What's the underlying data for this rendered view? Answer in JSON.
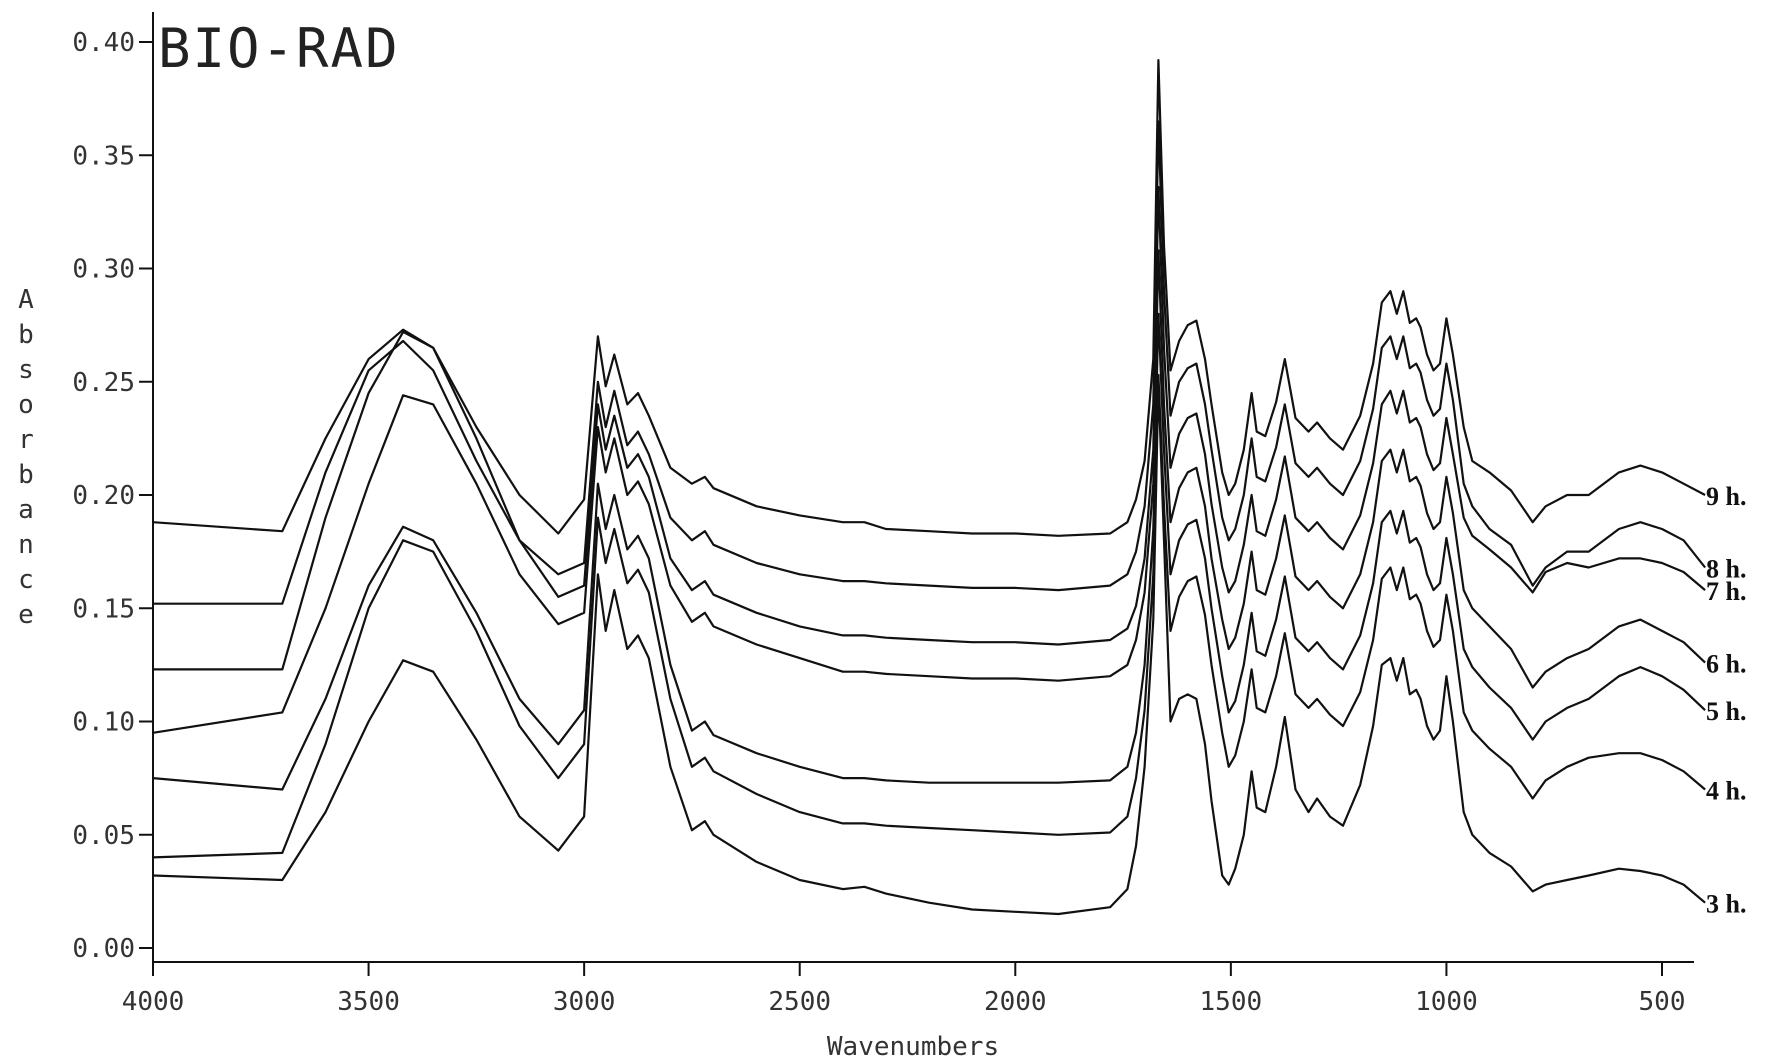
{
  "chart_data": {
    "type": "line",
    "title": "BIO-RAD",
    "xlabel": "Wavenumbers",
    "ylabel": "Absorbance",
    "xlim": [
      4000,
      400
    ],
    "ylim": [
      0,
      0.4
    ],
    "x_reversed": true,
    "grid": false,
    "xticks": [
      4000,
      3500,
      3000,
      2500,
      2000,
      1500,
      1000,
      500
    ],
    "xtick_labels": [
      "4000",
      "3500",
      "3000",
      "2500",
      "2000",
      "1500",
      "1000",
      "500"
    ],
    "yticks": [
      0.0,
      0.05,
      0.1,
      0.15,
      0.2,
      0.25,
      0.3,
      0.35,
      0.4
    ],
    "ytick_labels": [
      "0.00",
      "0.05",
      "0.10",
      "0.15",
      "0.20",
      "0.25",
      "0.30",
      "0.35",
      "0.40"
    ],
    "x": [
      4000,
      3700,
      3600,
      3500,
      3420,
      3350,
      3250,
      3150,
      3060,
      3000,
      2968,
      2950,
      2930,
      2900,
      2875,
      2850,
      2800,
      2750,
      2720,
      2700,
      2600,
      2500,
      2400,
      2350,
      2300,
      2200,
      2100,
      2000,
      1900,
      1780,
      1740,
      1720,
      1700,
      1680,
      1668,
      1655,
      1640,
      1620,
      1600,
      1580,
      1560,
      1545,
      1520,
      1505,
      1490,
      1470,
      1452,
      1440,
      1420,
      1395,
      1375,
      1350,
      1320,
      1300,
      1270,
      1240,
      1200,
      1170,
      1150,
      1130,
      1115,
      1100,
      1085,
      1070,
      1060,
      1045,
      1030,
      1015,
      1000,
      985,
      960,
      940,
      900,
      850,
      800,
      770,
      720,
      670,
      600,
      550,
      500,
      450,
      400
    ],
    "series": [
      {
        "name": "9 h.",
        "values": [
          0.188,
          0.184,
          0.225,
          0.26,
          0.273,
          0.265,
          0.23,
          0.2,
          0.183,
          0.198,
          0.27,
          0.248,
          0.262,
          0.24,
          0.245,
          0.235,
          0.212,
          0.205,
          0.208,
          0.203,
          0.195,
          0.191,
          0.188,
          0.188,
          0.185,
          0.184,
          0.183,
          0.183,
          0.182,
          0.183,
          0.188,
          0.198,
          0.215,
          0.26,
          0.392,
          0.31,
          0.255,
          0.268,
          0.275,
          0.277,
          0.26,
          0.24,
          0.21,
          0.2,
          0.205,
          0.22,
          0.245,
          0.228,
          0.226,
          0.241,
          0.26,
          0.234,
          0.228,
          0.232,
          0.225,
          0.22,
          0.235,
          0.258,
          0.285,
          0.29,
          0.28,
          0.29,
          0.276,
          0.278,
          0.274,
          0.262,
          0.255,
          0.258,
          0.278,
          0.262,
          0.23,
          0.215,
          0.21,
          0.202,
          0.188,
          0.195,
          0.2,
          0.2,
          0.21,
          0.213,
          0.21,
          0.205,
          0.2
        ]
      },
      {
        "name": "8 h.",
        "values": [
          0.152,
          0.152,
          0.21,
          0.255,
          0.268,
          0.255,
          0.215,
          0.18,
          0.165,
          0.17,
          0.25,
          0.23,
          0.246,
          0.222,
          0.228,
          0.218,
          0.19,
          0.18,
          0.184,
          0.178,
          0.17,
          0.165,
          0.162,
          0.162,
          0.161,
          0.16,
          0.159,
          0.159,
          0.158,
          0.16,
          0.165,
          0.175,
          0.195,
          0.24,
          0.365,
          0.29,
          0.235,
          0.25,
          0.256,
          0.258,
          0.24,
          0.22,
          0.19,
          0.18,
          0.185,
          0.2,
          0.225,
          0.208,
          0.206,
          0.221,
          0.24,
          0.214,
          0.208,
          0.212,
          0.205,
          0.2,
          0.215,
          0.238,
          0.265,
          0.27,
          0.26,
          0.27,
          0.256,
          0.258,
          0.254,
          0.242,
          0.235,
          0.238,
          0.258,
          0.242,
          0.205,
          0.195,
          0.185,
          0.178,
          0.16,
          0.168,
          0.175,
          0.175,
          0.185,
          0.188,
          0.185,
          0.18,
          0.168
        ]
      },
      {
        "name": "7 h.",
        "values": [
          0.123,
          0.123,
          0.19,
          0.245,
          0.272,
          0.265,
          0.225,
          0.18,
          0.155,
          0.16,
          0.24,
          0.22,
          0.235,
          0.212,
          0.218,
          0.208,
          0.172,
          0.158,
          0.162,
          0.156,
          0.148,
          0.142,
          0.138,
          0.138,
          0.137,
          0.136,
          0.135,
          0.135,
          0.134,
          0.136,
          0.141,
          0.151,
          0.172,
          0.22,
          0.336,
          0.265,
          0.212,
          0.227,
          0.234,
          0.236,
          0.218,
          0.196,
          0.168,
          0.157,
          0.162,
          0.178,
          0.2,
          0.184,
          0.182,
          0.198,
          0.217,
          0.19,
          0.184,
          0.188,
          0.181,
          0.176,
          0.191,
          0.214,
          0.24,
          0.246,
          0.236,
          0.246,
          0.232,
          0.234,
          0.23,
          0.218,
          0.211,
          0.214,
          0.234,
          0.218,
          0.19,
          0.182,
          0.176,
          0.168,
          0.157,
          0.166,
          0.17,
          0.168,
          0.172,
          0.172,
          0.17,
          0.166,
          0.158
        ]
      },
      {
        "name": "6 h.",
        "values": [
          0.095,
          0.104,
          0.15,
          0.205,
          0.244,
          0.24,
          0.205,
          0.165,
          0.143,
          0.148,
          0.23,
          0.21,
          0.225,
          0.2,
          0.206,
          0.196,
          0.16,
          0.144,
          0.148,
          0.142,
          0.134,
          0.128,
          0.122,
          0.122,
          0.121,
          0.12,
          0.119,
          0.119,
          0.118,
          0.12,
          0.125,
          0.136,
          0.157,
          0.205,
          0.308,
          0.24,
          0.188,
          0.203,
          0.21,
          0.212,
          0.195,
          0.172,
          0.145,
          0.132,
          0.137,
          0.152,
          0.175,
          0.158,
          0.156,
          0.172,
          0.191,
          0.164,
          0.158,
          0.162,
          0.155,
          0.15,
          0.165,
          0.188,
          0.215,
          0.22,
          0.21,
          0.22,
          0.206,
          0.208,
          0.204,
          0.192,
          0.185,
          0.188,
          0.208,
          0.192,
          0.158,
          0.15,
          0.142,
          0.132,
          0.115,
          0.122,
          0.128,
          0.132,
          0.142,
          0.145,
          0.14,
          0.135,
          0.126
        ]
      },
      {
        "name": "5 h.",
        "values": [
          0.075,
          0.07,
          0.11,
          0.16,
          0.186,
          0.18,
          0.148,
          0.11,
          0.09,
          0.105,
          0.205,
          0.185,
          0.2,
          0.176,
          0.182,
          0.172,
          0.125,
          0.096,
          0.1,
          0.094,
          0.086,
          0.08,
          0.075,
          0.075,
          0.074,
          0.073,
          0.073,
          0.073,
          0.073,
          0.074,
          0.08,
          0.095,
          0.125,
          0.185,
          0.28,
          0.22,
          0.165,
          0.18,
          0.187,
          0.189,
          0.172,
          0.15,
          0.12,
          0.104,
          0.109,
          0.125,
          0.148,
          0.131,
          0.129,
          0.145,
          0.164,
          0.137,
          0.131,
          0.135,
          0.128,
          0.123,
          0.138,
          0.161,
          0.188,
          0.193,
          0.183,
          0.193,
          0.179,
          0.181,
          0.177,
          0.165,
          0.158,
          0.161,
          0.181,
          0.165,
          0.132,
          0.124,
          0.115,
          0.106,
          0.092,
          0.1,
          0.106,
          0.11,
          0.12,
          0.124,
          0.12,
          0.114,
          0.105
        ]
      },
      {
        "name": "4 h.",
        "values": [
          0.04,
          0.042,
          0.09,
          0.15,
          0.18,
          0.175,
          0.14,
          0.098,
          0.075,
          0.09,
          0.19,
          0.17,
          0.185,
          0.161,
          0.167,
          0.157,
          0.11,
          0.08,
          0.084,
          0.078,
          0.068,
          0.06,
          0.055,
          0.055,
          0.054,
          0.053,
          0.052,
          0.051,
          0.05,
          0.051,
          0.058,
          0.075,
          0.105,
          0.165,
          0.253,
          0.195,
          0.14,
          0.155,
          0.162,
          0.164,
          0.147,
          0.125,
          0.095,
          0.08,
          0.085,
          0.1,
          0.123,
          0.106,
          0.104,
          0.12,
          0.139,
          0.112,
          0.106,
          0.11,
          0.103,
          0.098,
          0.113,
          0.136,
          0.163,
          0.168,
          0.158,
          0.168,
          0.154,
          0.156,
          0.152,
          0.14,
          0.133,
          0.136,
          0.156,
          0.14,
          0.104,
          0.096,
          0.088,
          0.08,
          0.066,
          0.074,
          0.08,
          0.084,
          0.086,
          0.086,
          0.083,
          0.078,
          0.07
        ]
      },
      {
        "name": "3 h.",
        "values": [
          0.032,
          0.03,
          0.06,
          0.1,
          0.127,
          0.122,
          0.092,
          0.058,
          0.043,
          0.058,
          0.165,
          0.14,
          0.158,
          0.132,
          0.138,
          0.128,
          0.08,
          0.052,
          0.056,
          0.05,
          0.038,
          0.03,
          0.026,
          0.027,
          0.024,
          0.02,
          0.017,
          0.016,
          0.015,
          0.018,
          0.026,
          0.045,
          0.08,
          0.145,
          0.25,
          0.18,
          0.1,
          0.11,
          0.112,
          0.11,
          0.09,
          0.065,
          0.032,
          0.028,
          0.035,
          0.05,
          0.078,
          0.062,
          0.06,
          0.08,
          0.102,
          0.07,
          0.06,
          0.066,
          0.058,
          0.054,
          0.072,
          0.098,
          0.125,
          0.128,
          0.118,
          0.128,
          0.112,
          0.114,
          0.11,
          0.098,
          0.092,
          0.096,
          0.12,
          0.1,
          0.06,
          0.05,
          0.042,
          0.036,
          0.025,
          0.028,
          0.03,
          0.032,
          0.035,
          0.034,
          0.032,
          0.028,
          0.02
        ]
      }
    ]
  }
}
